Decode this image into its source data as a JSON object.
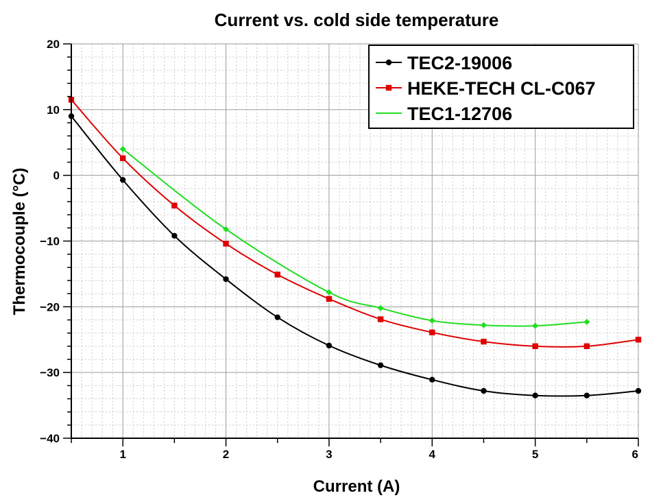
{
  "chart_data": {
    "type": "line",
    "title": "Current vs. cold side temperature",
    "xlabel": "Current (A)",
    "ylabel": "Thermocouple (°C)",
    "xlim": [
      0.5,
      6
    ],
    "ylim": [
      -40,
      20
    ],
    "x_ticks": [
      1,
      2,
      3,
      4,
      5,
      6
    ],
    "y_ticks": [
      20,
      10,
      0,
      -10,
      -20,
      -30,
      -40
    ],
    "x_tick_labels": [
      "1",
      "2",
      "3",
      "4",
      "5",
      "6"
    ],
    "y_tick_labels": [
      "20",
      "10",
      "0",
      "−10",
      "−20",
      "−30",
      "−40"
    ],
    "grid": true,
    "legend_position": "top-right",
    "series": [
      {
        "name": "TEC2-19006",
        "color": "#000000",
        "marker": "circle",
        "x": [
          0.5,
          1,
          1.5,
          2,
          2.5,
          3,
          3.5,
          4,
          4.5,
          5,
          5.5,
          6
        ],
        "y": [
          9,
          -0.7,
          -9.2,
          -15.8,
          -21.6,
          -25.9,
          -28.9,
          -31.1,
          -32.8,
          -33.5,
          -33.5,
          -32.8
        ]
      },
      {
        "name": "HEKE-TECH CL-C067",
        "color": "#e00000",
        "marker": "square",
        "x": [
          0.5,
          1,
          1.5,
          2,
          2.5,
          3,
          3.5,
          4,
          4.5,
          5,
          5.5,
          6
        ],
        "y": [
          11.5,
          2.6,
          -4.6,
          -10.4,
          -15.1,
          -18.8,
          -21.9,
          -23.9,
          -25.3,
          -26,
          -26,
          -25
        ]
      },
      {
        "name": "TEC1-12706",
        "color": "#22dd22",
        "marker": "diamond",
        "x": [
          1,
          2,
          3,
          3.5,
          4,
          4.5,
          5,
          5.5
        ],
        "y": [
          4,
          -8.2,
          -17.8,
          -20.2,
          -22.1,
          -22.8,
          -22.9,
          -22.3
        ]
      }
    ]
  }
}
